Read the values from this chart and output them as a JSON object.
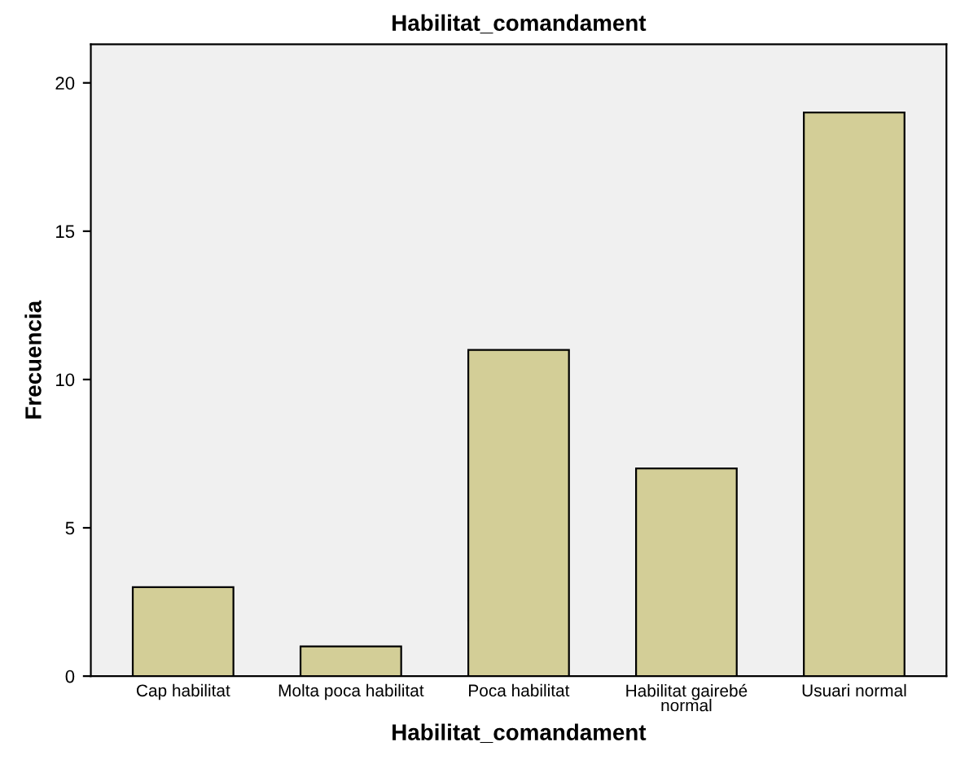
{
  "chart_data": {
    "type": "bar",
    "title": "Habilitat_comandament",
    "xlabel": "Habilitat_comandament",
    "ylabel": "Frecuencia",
    "categories": [
      "Cap habilitat",
      "Molta poca habilitat",
      "Poca habilitat",
      "Habilitat gairebé normal",
      "Usuari normal"
    ],
    "values": [
      3,
      1,
      11,
      7,
      19
    ],
    "color": "#d3ce97",
    "ylim": [
      0,
      21.3
    ],
    "yticks": [
      0,
      5,
      10,
      15,
      20
    ],
    "grid": false
  }
}
